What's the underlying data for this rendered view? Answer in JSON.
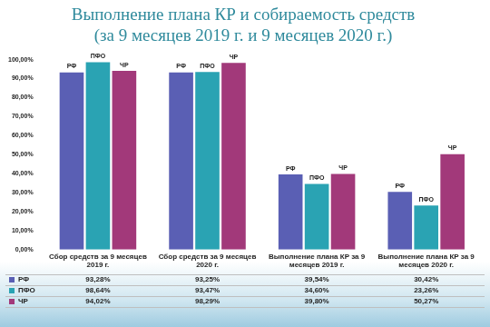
{
  "chart_data": {
    "type": "bar",
    "title": "Выполнение плана КР и собираемость средств",
    "subtitle": "(за 9 месяцев 2019 г. и 9 месяцев 2020 г.)",
    "categories": [
      "Сбор средств за 9 месяцев 2019 г.",
      "Сбор средств за 9 месяцев 2020 г.",
      "Выполнение плана КР за 9 месяцев 2019 г.",
      "Выполнение плана КР за 9 месяцев 2020 г."
    ],
    "series": [
      {
        "name": "РФ",
        "color": "#5a5fb4",
        "values": [
          93.28,
          93.25,
          39.54,
          30.42
        ],
        "value_labels": [
          "93,28%",
          "93,25%",
          "39,54%",
          "30,42%"
        ]
      },
      {
        "name": "ПФО",
        "color": "#2aa3b3",
        "values": [
          98.64,
          93.47,
          34.6,
          23.26
        ],
        "value_labels": [
          "98,64%",
          "93,47%",
          "34,60%",
          "23,26%"
        ]
      },
      {
        "name": "ЧР",
        "color": "#a2397a",
        "values": [
          94.02,
          98.29,
          39.8,
          50.27
        ],
        "value_labels": [
          "94,02%",
          "98,29%",
          "39,80%",
          "50,27%"
        ]
      }
    ],
    "ylim": [
      0,
      100
    ],
    "yticks": [
      {
        "value": 0,
        "label": "0,00%"
      },
      {
        "value": 10,
        "label": "10,00%"
      },
      {
        "value": 20,
        "label": "20,00%"
      },
      {
        "value": 30,
        "label": "30,00%"
      },
      {
        "value": 40,
        "label": "40,00%"
      },
      {
        "value": 50,
        "label": "50,00%"
      },
      {
        "value": 60,
        "label": "60,00%"
      },
      {
        "value": 70,
        "label": "70,00%"
      },
      {
        "value": 80,
        "label": "80,00%"
      },
      {
        "value": 90,
        "label": "90,00%"
      },
      {
        "value": 100,
        "label": "100,00%"
      }
    ],
    "grid": false
  }
}
